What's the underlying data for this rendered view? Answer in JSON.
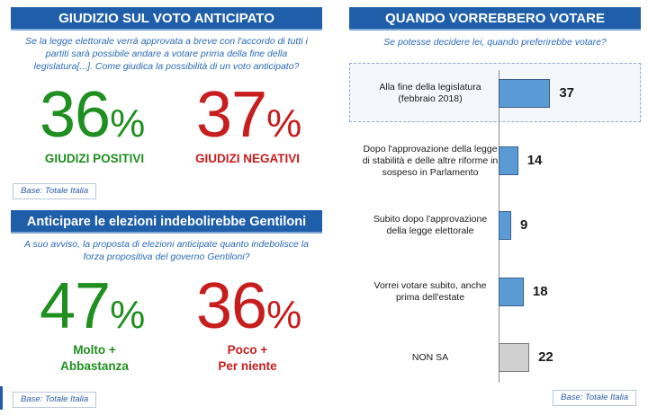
{
  "left_top": {
    "title": "GIUDIZIO SUL VOTO ANTICIPATO",
    "question": "Se la legge elettorale verrà approvata a breve con l'accordo di tutti i partiti sarà possibile andare a votare prima della fine della legislatura[...]. Come giudica la possibilità di un voto anticipato?",
    "positive": {
      "value": "36",
      "symbol": "%",
      "label": "GIUDIZI POSITIVI",
      "color": "#1f8f1f"
    },
    "negative": {
      "value": "37",
      "symbol": "%",
      "label": "GIUDIZI NEGATIVI",
      "color": "#c81d1d"
    },
    "base": "Base: Totale Italia"
  },
  "left_bottom": {
    "title": "Anticipare le elezioni indebolirebbe Gentiloni",
    "question": "A suo avviso, la proposta di elezioni anticipate quanto indebolisce la forza propositiva del governo Gentiloni?",
    "positive": {
      "value": "47",
      "symbol": "%",
      "label_line1": "Molto +",
      "label_line2": "Abbastanza",
      "color": "#1f8f1f"
    },
    "negative": {
      "value": "36",
      "symbol": "%",
      "label_line1": "Poco +",
      "label_line2": "Per niente",
      "color": "#c81d1d"
    },
    "base": "Base: Totale Italia"
  },
  "right": {
    "title": "QUANDO VORREBBERO VOTARE",
    "question": "Se potesse decidere lei, quando preferirebbe votare?",
    "base": "Base: Totale Italia"
  },
  "chart_data": {
    "type": "bar",
    "orientation": "horizontal",
    "categories": [
      [
        "Alla fine della legislatura",
        "(febbraio 2018)"
      ],
      [
        "Dopo l'approvazione della legge",
        "di stabilità e delle altre riforme in",
        "sospeso in Parlamento"
      ],
      [
        "Subito dopo l'approvazione",
        "della legge elettorale"
      ],
      [
        "Vorrei votare subito, anche",
        "prima dell'estate"
      ],
      [
        "NON SA"
      ]
    ],
    "values": [
      37,
      14,
      9,
      18,
      22
    ],
    "value_labels": [
      "37",
      "14",
      "9",
      "18",
      "22"
    ],
    "colors": [
      "#5b9bd5",
      "#5b9bd5",
      "#5b9bd5",
      "#5b9bd5",
      "#d0d0d0"
    ],
    "xlim": [
      0,
      40
    ],
    "title": "",
    "xlabel": "",
    "ylabel": ""
  }
}
